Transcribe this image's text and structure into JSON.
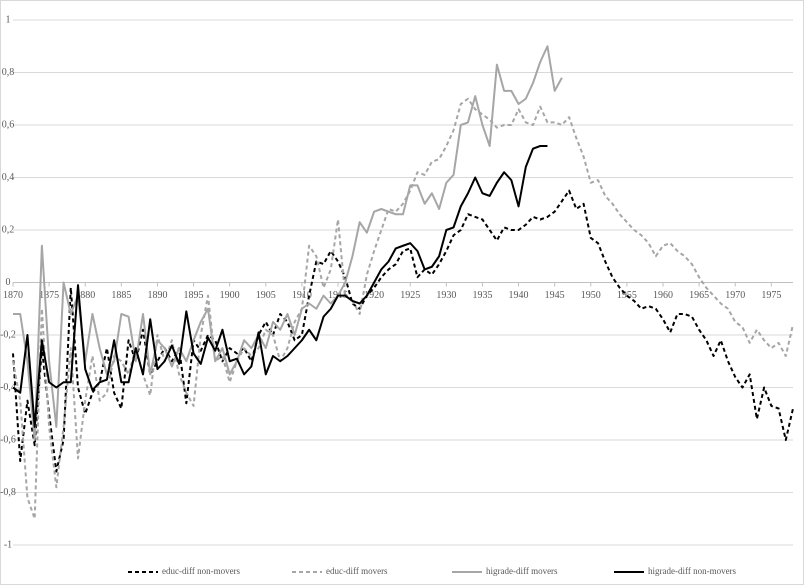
{
  "chart_data": {
    "type": "line",
    "x": [
      1870,
      1871,
      1872,
      1873,
      1874,
      1875,
      1876,
      1877,
      1878,
      1879,
      1880,
      1881,
      1882,
      1883,
      1884,
      1885,
      1886,
      1887,
      1888,
      1889,
      1890,
      1891,
      1892,
      1893,
      1894,
      1895,
      1896,
      1897,
      1898,
      1899,
      1900,
      1901,
      1902,
      1903,
      1904,
      1905,
      1906,
      1907,
      1908,
      1909,
      1910,
      1911,
      1912,
      1913,
      1914,
      1915,
      1916,
      1917,
      1918,
      1919,
      1920,
      1921,
      1922,
      1923,
      1924,
      1925,
      1926,
      1927,
      1928,
      1929,
      1930,
      1931,
      1932,
      1933,
      1934,
      1935,
      1936,
      1937,
      1938,
      1939,
      1940,
      1941,
      1942,
      1943,
      1944,
      1945,
      1946,
      1947,
      1948,
      1949,
      1950,
      1951,
      1952,
      1953,
      1954,
      1955,
      1956,
      1957,
      1958,
      1959,
      1960,
      1961,
      1962,
      1963,
      1964,
      1965,
      1966,
      1967,
      1968,
      1969,
      1970,
      1971,
      1972,
      1973,
      1974,
      1975,
      1976,
      1977,
      1978
    ],
    "series": [
      {
        "name": "educ-diff non-movers",
        "color": "#000000",
        "dash": true,
        "values": [
          -0.27,
          -0.68,
          -0.45,
          -0.62,
          -0.25,
          -0.5,
          -0.72,
          -0.6,
          -0.02,
          -0.4,
          -0.5,
          -0.42,
          -0.38,
          -0.25,
          -0.42,
          -0.48,
          -0.22,
          -0.3,
          -0.18,
          -0.35,
          -0.3,
          -0.25,
          -0.3,
          -0.25,
          -0.46,
          -0.22,
          -0.26,
          -0.2,
          -0.22,
          -0.3,
          -0.25,
          -0.27,
          -0.25,
          -0.3,
          -0.2,
          -0.15,
          -0.2,
          -0.12,
          -0.15,
          -0.22,
          -0.2,
          -0.05,
          0.08,
          0.07,
          0.12,
          0.08,
          0.02,
          -0.08,
          -0.1,
          -0.05,
          -0.02,
          0.02,
          0.05,
          0.07,
          0.12,
          0.13,
          0.02,
          0.05,
          0.03,
          0.07,
          0.12,
          0.18,
          0.2,
          0.26,
          0.25,
          0.24,
          0.2,
          0.16,
          0.21,
          0.2,
          0.2,
          0.22,
          0.25,
          0.24,
          0.25,
          0.27,
          0.31,
          0.35,
          0.28,
          0.3,
          0.17,
          0.15,
          0.08,
          0.02,
          -0.02,
          -0.05,
          -0.07,
          -0.1,
          -0.09,
          -0.1,
          -0.14,
          -0.19,
          -0.12,
          -0.12,
          -0.13,
          -0.18,
          -0.22,
          -0.28,
          -0.22,
          -0.3,
          -0.36,
          -0.4,
          -0.35,
          -0.52,
          -0.4,
          -0.47,
          -0.48,
          -0.6,
          -0.48
        ]
      },
      {
        "name": "educ-diff movers",
        "color": "#a6a6a6",
        "dash": true,
        "values": [
          -0.3,
          -0.45,
          -0.82,
          -0.9,
          -0.1,
          -0.55,
          -0.78,
          -0.55,
          -0.25,
          -0.67,
          -0.45,
          -0.28,
          -0.45,
          -0.42,
          -0.28,
          -0.3,
          -0.35,
          -0.25,
          -0.35,
          -0.43,
          -0.2,
          -0.3,
          -0.22,
          -0.35,
          -0.42,
          -0.47,
          -0.2,
          -0.05,
          -0.3,
          -0.28,
          -0.38,
          -0.3,
          -0.25,
          -0.28,
          -0.25,
          -0.18,
          -0.2,
          -0.3,
          -0.25,
          -0.15,
          -0.1,
          0.14,
          0.1,
          -0.02,
          0.05,
          0.24,
          -0.05,
          -0.07,
          -0.12,
          0.03,
          0.12,
          0.2,
          0.28,
          0.27,
          0.3,
          0.35,
          0.42,
          0.41,
          0.46,
          0.47,
          0.52,
          0.58,
          0.68,
          0.7,
          0.66,
          0.64,
          0.62,
          0.59,
          0.6,
          0.6,
          0.66,
          0.61,
          0.6,
          0.67,
          0.61,
          0.61,
          0.6,
          0.63,
          0.55,
          0.48,
          0.38,
          0.39,
          0.33,
          0.3,
          0.26,
          0.23,
          0.2,
          0.18,
          0.15,
          0.1,
          0.14,
          0.15,
          0.12,
          0.1,
          0.07,
          0.02,
          -0.02,
          -0.05,
          -0.08,
          -0.1,
          -0.15,
          -0.17,
          -0.23,
          -0.18,
          -0.22,
          -0.25,
          -0.23,
          -0.28,
          -0.16
        ]
      },
      {
        "name": "higrade-diff movers",
        "color": "#a6a6a6",
        "dash": false,
        "values": [
          -0.12,
          -0.12,
          -0.3,
          -0.6,
          0.14,
          -0.3,
          -0.55,
          0.0,
          -0.12,
          -0.05,
          -0.3,
          -0.12,
          -0.25,
          -0.35,
          -0.3,
          -0.12,
          -0.13,
          -0.3,
          -0.12,
          -0.35,
          -0.22,
          -0.25,
          -0.32,
          -0.25,
          -0.3,
          -0.22,
          -0.15,
          -0.1,
          -0.3,
          -0.25,
          -0.35,
          -0.3,
          -0.22,
          -0.25,
          -0.2,
          -0.25,
          -0.15,
          -0.18,
          -0.12,
          -0.2,
          -0.1,
          -0.08,
          -0.1,
          -0.05,
          -0.08,
          -0.05,
          0.0,
          0.1,
          0.23,
          0.19,
          0.27,
          0.28,
          0.27,
          0.26,
          0.26,
          0.37,
          0.37,
          0.3,
          0.34,
          0.28,
          0.38,
          0.41,
          0.6,
          0.61,
          0.71,
          0.6,
          0.52,
          0.83,
          0.73,
          0.73,
          0.68,
          0.7,
          0.76,
          0.84,
          0.9,
          0.73,
          0.78,
          null,
          null,
          null,
          null,
          null,
          null,
          null,
          null,
          null,
          null,
          null,
          null,
          null,
          null,
          null,
          null,
          null,
          null,
          null,
          null,
          null,
          null,
          null,
          null,
          null,
          null,
          null,
          null,
          null,
          null,
          null,
          null
        ]
      },
      {
        "name": "higrade-diff non-movers",
        "color": "#000000",
        "dash": false,
        "values": [
          -0.4,
          -0.42,
          -0.2,
          -0.55,
          -0.22,
          -0.38,
          -0.4,
          -0.38,
          -0.38,
          -0.01,
          -0.33,
          -0.41,
          -0.38,
          -0.37,
          -0.22,
          -0.38,
          -0.38,
          -0.25,
          -0.35,
          -0.14,
          -0.33,
          -0.3,
          -0.24,
          -0.31,
          -0.11,
          -0.27,
          -0.31,
          -0.21,
          -0.26,
          -0.18,
          -0.3,
          -0.29,
          -0.35,
          -0.32,
          -0.19,
          -0.35,
          -0.28,
          -0.3,
          -0.28,
          -0.25,
          -0.22,
          -0.18,
          -0.22,
          -0.13,
          -0.1,
          -0.05,
          -0.05,
          -0.07,
          -0.08,
          -0.05,
          0.0,
          0.05,
          0.08,
          0.13,
          0.14,
          0.15,
          0.12,
          0.05,
          0.06,
          0.1,
          0.2,
          0.21,
          0.29,
          0.34,
          0.4,
          0.34,
          0.33,
          0.38,
          0.42,
          0.39,
          0.29,
          0.44,
          0.51,
          0.52,
          0.52,
          null,
          null,
          null,
          null,
          null,
          null,
          null,
          null,
          null,
          null,
          null,
          null,
          null,
          null,
          null,
          null,
          null,
          null,
          null,
          null,
          null,
          null,
          null,
          null,
          null,
          null,
          null,
          null,
          null,
          null,
          null,
          null,
          null,
          null
        ]
      }
    ],
    "xlim": [
      1870,
      1978
    ],
    "xticks": [
      1870,
      1875,
      1880,
      1885,
      1890,
      1895,
      1900,
      1905,
      1910,
      1915,
      1920,
      1925,
      1930,
      1935,
      1940,
      1945,
      1950,
      1955,
      1960,
      1965,
      1970,
      1975
    ],
    "ylim": [
      -1,
      1
    ],
    "yticks": [
      -1,
      {
        "value": -0.8,
        "label": "-0,8"
      },
      {
        "value": -0.6,
        "label": "-0,6"
      },
      {
        "value": -0.4,
        "label": "-0,4"
      },
      {
        "value": -0.2,
        "label": "-0,2"
      },
      0,
      {
        "value": 0.2,
        "label": "0,2"
      },
      {
        "value": 0.4,
        "label": "0,4"
      },
      {
        "value": 0.6,
        "label": "0,6"
      },
      {
        "value": 0.8,
        "label": "0,8"
      },
      1
    ],
    "grid": true
  }
}
